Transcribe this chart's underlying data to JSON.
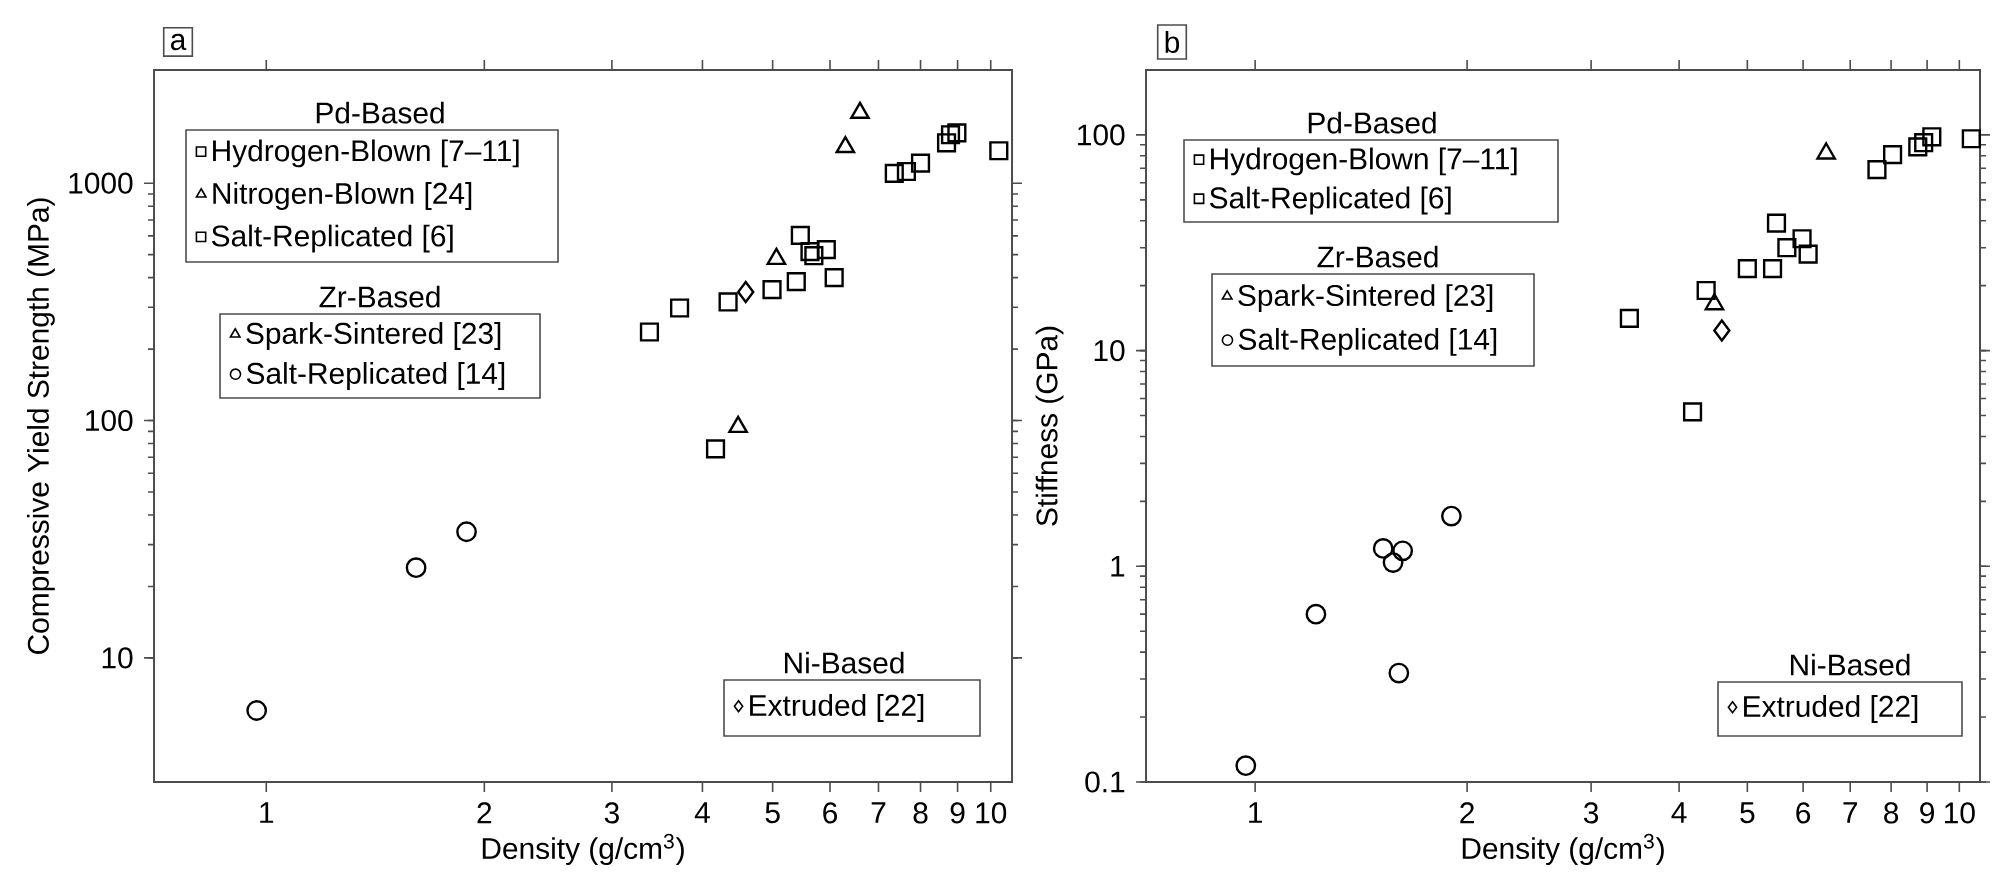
{
  "chart_data": [
    {
      "type": "scatter",
      "title": "a",
      "xlabel": "Density (g/cm$^{3}$)",
      "ylabel": "Compressive Yield Strength (MPa)",
      "log": "xy",
      "legend": "left",
      "xlim": [
        0.7,
        10.7
      ],
      "ylim": [
        3,
        3000
      ],
      "xticks": [
        1,
        2,
        3,
        4,
        5,
        6,
        7,
        8,
        9,
        10
      ],
      "yticks": [
        10,
        100,
        1000
      ],
      "annotations": [
        "Pd-Based",
        "Zr-Based",
        "Ni-Based"
      ],
      "series": [
        {
          "name": "Hydrogen-Blown [7–11]",
          "color": "#000000",
          "marker": "square",
          "x": [
            3.38,
            3.72,
            4.34,
            4.99,
            5.39,
            5.46,
            5.63,
            5.93,
            6.08,
            5.7,
            7.36,
            7.65,
            8.0,
            8.69,
            8.8,
            8.98,
            10.26
          ],
          "values": [
            236,
            298,
            316,
            356,
            385,
            603,
            515,
            525,
            400,
            495,
            1100,
            1120,
            1215,
            1480,
            1600,
            1630,
            1370
          ]
        },
        {
          "name": "Nitrogen-Blown [24]",
          "color": "#000000",
          "marker": "triangle",
          "x": [
            6.6
          ],
          "values": [
            1980
          ]
        },
        {
          "name": "Salt-Replicated [6]",
          "color": "#000000",
          "marker": "square",
          "x": [
            4.17
          ],
          "values": [
            76
          ]
        },
        {
          "name": "Spark-Sintered [23]",
          "color": "#000000",
          "marker": "triangle",
          "x": [
            6.3,
            5.06,
            4.48
          ],
          "values": [
            1420,
            480,
            94
          ]
        },
        {
          "name": "Salt-Replicated [14]",
          "color": "#000000",
          "marker": "circle",
          "x": [
            0.97,
            1.61,
            1.89
          ],
          "values": [
            6,
            24,
            34
          ]
        },
        {
          "name": "Extruded [22]",
          "color": "#000000",
          "marker": "diamond",
          "x": [
            4.59
          ],
          "values": [
            348
          ]
        }
      ]
    },
    {
      "type": "scatter",
      "title": "b",
      "xlabel": "Density (g/cm$^{3}$)",
      "ylabel": "Stiffness (GPa)",
      "log": "xy",
      "legend": "left",
      "xlim": [
        0.7,
        10.7
      ],
      "ylim": [
        0.1,
        200
      ],
      "xticks": [
        1,
        2,
        3,
        4,
        5,
        6,
        7,
        8,
        9,
        10
      ],
      "yticks": [
        0.1,
        1,
        10,
        100
      ],
      "annotations": [
        "Pd-Based",
        "Zr-Based",
        "Ni-Based"
      ],
      "series": [
        {
          "name": "Hydrogen-Blown [7–11]",
          "color": "#000000",
          "marker": "square",
          "x": [
            3.4,
            4.37,
            5.0,
            5.43,
            5.5,
            5.69,
            5.98,
            6.1,
            7.64,
            8.04,
            8.73,
            8.9,
            9.14,
            10.4
          ],
          "values": [
            14.1,
            19,
            24,
            24,
            39,
            30,
            33,
            28,
            69,
            81,
            88,
            92,
            98,
            96
          ]
        },
        {
          "name": "Salt-Replicated [6]",
          "color": "#000000",
          "marker": "square",
          "x": [
            4.18
          ],
          "values": [
            5.2
          ]
        },
        {
          "name": "Spark-Sintered [23]",
          "color": "#000000",
          "marker": "triangle",
          "x": [
            6.47,
            4.49
          ],
          "values": [
            82,
            16.4
          ]
        },
        {
          "name": "Salt-Replicated [14]",
          "color": "#000000",
          "marker": "circle",
          "x": [
            0.97,
            1.22,
            1.52,
            1.57,
            1.62,
            1.6,
            1.9
          ],
          "values": [
            0.119,
            0.6,
            1.21,
            1.04,
            1.18,
            0.32,
            1.71
          ]
        },
        {
          "name": "Extruded [22]",
          "color": "#000000",
          "marker": "diamond",
          "x": [
            4.6
          ],
          "values": [
            12.4
          ]
        }
      ]
    }
  ]
}
